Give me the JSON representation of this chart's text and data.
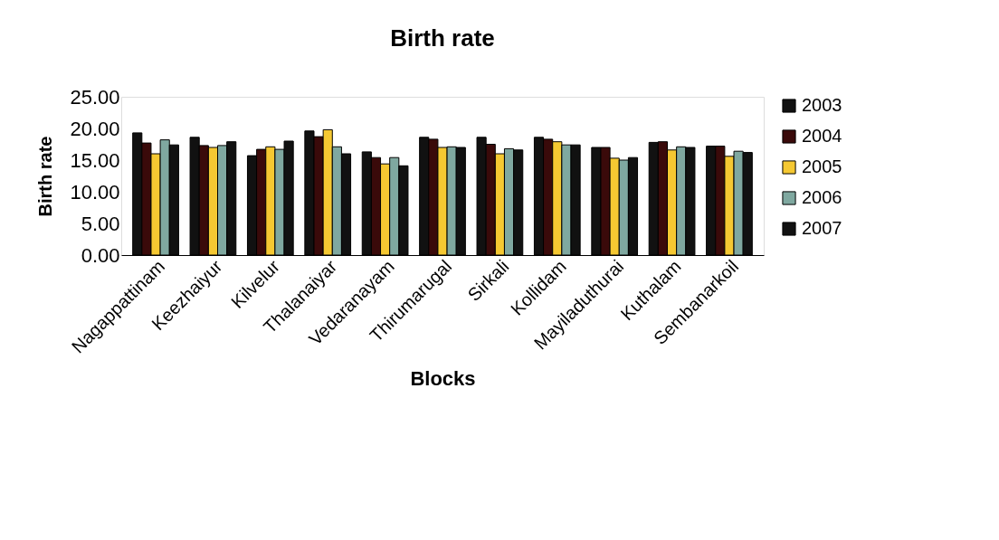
{
  "chart_data": {
    "type": "bar",
    "title": "Birth rate",
    "xlabel": "Blocks",
    "ylabel": "Birth rate",
    "categories": [
      "Nagappattinam",
      "Keezhaiyur",
      "Kilvelur",
      "Thalanaiyar",
      "Vedaranayam",
      "Thirumarugal",
      "Sirkali",
      "Kollidam",
      "Mayiladuthurai",
      "Kuthalam",
      "Sembanarkoil"
    ],
    "series": [
      {
        "name": "2003",
        "color": "#111111",
        "values": [
          19.3,
          18.6,
          15.7,
          19.6,
          16.3,
          18.6,
          18.6,
          18.6,
          17.0,
          17.8,
          17.2
        ]
      },
      {
        "name": "2004",
        "color": "#3a0a0a",
        "values": [
          17.7,
          17.3,
          16.7,
          18.7,
          15.4,
          18.3,
          17.5,
          18.3,
          17.0,
          17.9,
          17.2
        ]
      },
      {
        "name": "2005",
        "color": "#f5c832",
        "values": [
          16.0,
          17.0,
          17.1,
          19.8,
          14.4,
          17.0,
          16.0,
          17.9,
          15.3,
          16.6,
          15.6
        ]
      },
      {
        "name": "2006",
        "color": "#7fa8a0",
        "values": [
          18.2,
          17.3,
          16.7,
          17.1,
          15.4,
          17.1,
          16.8,
          17.4,
          15.0,
          17.1,
          16.4
        ]
      },
      {
        "name": "2007",
        "color": "#111111",
        "values": [
          17.4,
          17.9,
          18.0,
          16.0,
          14.1,
          17.0,
          16.6,
          17.4,
          15.4,
          17.0,
          16.2
        ]
      }
    ],
    "ylim": [
      0,
      25
    ],
    "yticks": [
      {
        "value": 0,
        "label": "0.00"
      },
      {
        "value": 5,
        "label": "5.00"
      },
      {
        "value": 10,
        "label": "10.00"
      },
      {
        "value": 15,
        "label": "15.00"
      },
      {
        "value": 20,
        "label": "20.00"
      },
      {
        "value": 25,
        "label": "25.00"
      }
    ],
    "grid": false,
    "legend": "right"
  }
}
